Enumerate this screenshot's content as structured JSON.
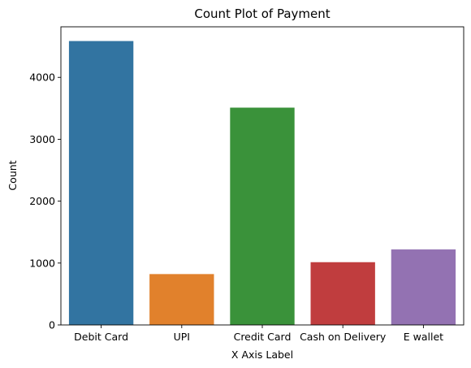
{
  "chart_data": {
    "type": "bar",
    "title": "Count Plot of Payment",
    "xlabel": "X Axis Label",
    "ylabel": "Count",
    "categories": [
      "Debit Card",
      "UPI",
      "Credit Card",
      "Cash on Delivery",
      "E wallet"
    ],
    "values": [
      4587,
      822,
      3511,
      1014,
      1220
    ],
    "colors": [
      "#3274a1",
      "#e1812c",
      "#3a923a",
      "#c03d3e",
      "#9372b2"
    ],
    "ylim": [
      0,
      4817
    ],
    "yticks": [
      0,
      1000,
      2000,
      3000,
      4000
    ],
    "grid": false,
    "legend": "none"
  }
}
